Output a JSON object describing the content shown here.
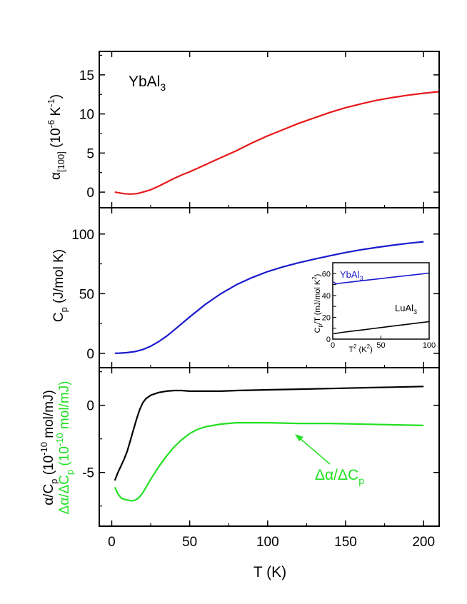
{
  "chart_data": [
    {
      "type": "line",
      "panel": "top",
      "annotation": {
        "main": "YbAl",
        "sub": "3"
      },
      "xlim": [
        -8,
        210
      ],
      "ylim": [
        -2,
        18
      ],
      "ylabel": {
        "alpha": "α",
        "sub": "[100]",
        "mid": " (10",
        "sup1": "-6",
        "mid2": " K",
        "sup2": "-1",
        "tail": ")"
      },
      "yticks": [
        0,
        5,
        10,
        15
      ],
      "grid": false,
      "series": [
        {
          "color": "#e8181a",
          "x": [
            2,
            5,
            8,
            12,
            16,
            20,
            25,
            30,
            35,
            40,
            45,
            50,
            55,
            60,
            65,
            70,
            75,
            80,
            90,
            100,
            110,
            120,
            130,
            140,
            150,
            160,
            170,
            180,
            190,
            200,
            205,
            210
          ],
          "y": [
            0.0,
            -0.1,
            -0.2,
            -0.25,
            -0.2,
            0.0,
            0.3,
            0.75,
            1.25,
            1.75,
            2.2,
            2.6,
            3.05,
            3.5,
            3.95,
            4.4,
            4.85,
            5.3,
            6.3,
            7.2,
            8.0,
            8.8,
            9.5,
            10.2,
            10.8,
            11.3,
            11.75,
            12.1,
            12.4,
            12.65,
            12.75,
            12.85
          ]
        }
      ]
    },
    {
      "type": "line",
      "panel": "middle",
      "xlim": [
        -8,
        210
      ],
      "ylim": [
        -12,
        122
      ],
      "ylabel": {
        "main": "C",
        "sub": "p",
        "tail": " (J/mol K)"
      },
      "yticks": [
        0,
        50,
        100
      ],
      "grid": false,
      "series": [
        {
          "color": "#1a1acc",
          "x": [
            2,
            5,
            10,
            15,
            20,
            25,
            30,
            35,
            40,
            50,
            60,
            70,
            80,
            90,
            100,
            110,
            120,
            130,
            140,
            150,
            160,
            170,
            180,
            190,
            200
          ],
          "y": [
            0.1,
            0.2,
            0.6,
            1.5,
            3.2,
            6.0,
            9.8,
            14.2,
            19.5,
            30.5,
            41.0,
            50.0,
            57.5,
            63.5,
            68.5,
            72.5,
            76.0,
            79.0,
            81.8,
            84.5,
            86.8,
            88.8,
            90.6,
            92.2,
            93.5
          ]
        }
      ],
      "inset": {
        "xlim": [
          0,
          100
        ],
        "ylim": [
          0,
          70
        ],
        "xticks": [
          0,
          50,
          100
        ],
        "yticks": [
          0,
          10,
          20,
          30,
          40,
          50,
          60
        ],
        "xlabel": {
          "main": "T",
          "sup": "2",
          "tail": " (K",
          "sup2": "2",
          "end": ")"
        },
        "ylabel": {
          "main": "C",
          "sub": "p",
          "mid": "/T (mJ/mol K",
          "sup": "2",
          "tail": ")"
        },
        "series": [
          {
            "label_main": "YbAl",
            "label_sub": "3",
            "color": "#1a1acc",
            "x": [
              1,
              3,
              6,
              10,
              20,
              30,
              40,
              50,
              60,
              70,
              80,
              90,
              100
            ],
            "y": [
              52.5,
              50.5,
              51.0,
              51.5,
              52.5,
              53.5,
              54.5,
              55.5,
              56.5,
              57.5,
              58.5,
              59.5,
              60.5
            ]
          },
          {
            "label_main": "LuAl",
            "label_sub": "3",
            "color": "#000000",
            "x": [
              1,
              10,
              20,
              30,
              40,
              50,
              60,
              70,
              80,
              90,
              100
            ],
            "y": [
              5.0,
              6.2,
              7.3,
              8.4,
              9.5,
              10.6,
              11.7,
              12.8,
              13.9,
              15.0,
              16.0
            ]
          }
        ]
      }
    },
    {
      "type": "line",
      "panel": "bottom",
      "xlim": [
        -8,
        210
      ],
      "ylim": [
        -9,
        2.8
      ],
      "xlabel": "T (K)",
      "xticks": [
        0,
        50,
        100,
        150,
        200
      ],
      "yticks": [
        -5,
        0
      ],
      "grid": false,
      "ylabel": {
        "line1": {
          "main": "α/C",
          "sub": "p",
          "mid": " (10",
          "sup": "-10",
          "tail": " mol/mJ)"
        },
        "line2": {
          "main": "Δα/ΔC",
          "sub": "p",
          "mid": " (10",
          "sup": "-10",
          "tail": " mol/mJ)"
        }
      },
      "annotation": {
        "main": "Δα/ΔC",
        "sub": "p"
      },
      "series": [
        {
          "color": "#000000",
          "x": [
            2,
            4,
            6,
            8,
            10,
            12,
            14,
            16,
            18,
            20,
            22,
            25,
            30,
            35,
            40,
            45,
            50,
            60,
            70,
            80,
            100,
            120,
            140,
            160,
            180,
            200
          ],
          "y": [
            -5.6,
            -5.0,
            -4.5,
            -4.0,
            -3.4,
            -2.6,
            -1.8,
            -1.0,
            -0.3,
            0.2,
            0.5,
            0.75,
            0.95,
            1.05,
            1.1,
            1.1,
            1.05,
            1.05,
            1.05,
            1.1,
            1.15,
            1.2,
            1.25,
            1.3,
            1.35,
            1.4
          ]
        },
        {
          "color": "#22e022",
          "x": [
            2,
            4,
            6,
            8,
            10,
            12,
            14,
            16,
            18,
            20,
            22,
            25,
            30,
            35,
            40,
            45,
            50,
            55,
            60,
            70,
            80,
            100,
            120,
            140,
            160,
            180,
            200
          ],
          "y": [
            -6.1,
            -6.6,
            -6.9,
            -7.0,
            -7.05,
            -7.1,
            -7.1,
            -7.0,
            -6.8,
            -6.5,
            -6.1,
            -5.5,
            -4.6,
            -3.8,
            -3.1,
            -2.55,
            -2.1,
            -1.8,
            -1.6,
            -1.4,
            -1.3,
            -1.3,
            -1.35,
            -1.35,
            -1.4,
            -1.45,
            -1.5
          ]
        }
      ]
    }
  ]
}
